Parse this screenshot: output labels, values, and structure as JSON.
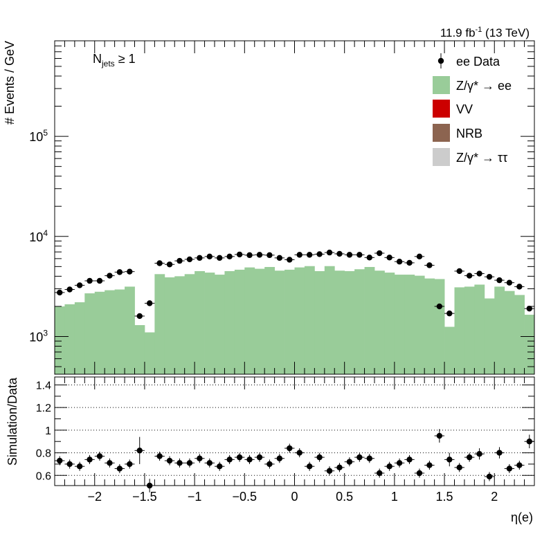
{
  "chart_data": [
    {
      "type": "bar",
      "panel": "main",
      "ylabel": "# Events / GeV",
      "yscale": "log",
      "ylim": [
        420,
        900000
      ],
      "yticks": [
        {
          "v": 1000,
          "label": "10"
        },
        {
          "v": 10000,
          "label": "10"
        },
        {
          "v": 100000,
          "label": "10"
        }
      ],
      "ytick_exponents": [
        "3",
        "4",
        "5"
      ],
      "lumi_label": "11.9 fb",
      "lumi_sup": "-1",
      "lumi_tail": " (13 TeV)",
      "annotation": "N",
      "annotation_sub": "jets",
      "annotation_tail": " ≥ 1",
      "bins": {
        "xmin": -2.4,
        "xmax": 2.4,
        "n": 48
      },
      "series": [
        {
          "name": "ee Data",
          "kind": "points",
          "color": "#000000",
          "values": [
            2750,
            2950,
            3250,
            3600,
            3600,
            4050,
            4400,
            4450,
            1600,
            2150,
            5400,
            5250,
            5700,
            5900,
            6100,
            6300,
            6100,
            6300,
            6600,
            6500,
            6550,
            6500,
            6100,
            5850,
            6550,
            6550,
            6650,
            6900,
            6700,
            6550,
            6550,
            6150,
            6800,
            6150,
            5600,
            5450,
            6300,
            5150,
            2000,
            1700,
            4500,
            4050,
            4250,
            3950,
            3650,
            3450,
            3150,
            1900
          ]
        },
        {
          "name": "Z/γ* → ee",
          "kind": "bars",
          "color": "#99cc99",
          "values": [
            2000,
            2100,
            2200,
            2700,
            2800,
            2900,
            2950,
            3150,
            1300,
            1100,
            4200,
            3900,
            4000,
            4200,
            4500,
            4350,
            4150,
            4500,
            4650,
            4900,
            4750,
            4950,
            4550,
            4650,
            4900,
            5050,
            4500,
            5050,
            4550,
            4500,
            4700,
            4950,
            4550,
            4350,
            4150,
            4150,
            4050,
            3800,
            3750,
            1250,
            3100,
            3150,
            3300,
            2400,
            3150,
            2850,
            2600,
            1650
          ]
        },
        {
          "name": "VV",
          "kind": "legend",
          "color": "#cc0000"
        },
        {
          "name": "NRB",
          "kind": "legend",
          "color": "#8c6450"
        },
        {
          "name": "Z/γ* → ττ",
          "kind": "legend",
          "color": "#cccccc"
        }
      ]
    },
    {
      "type": "scatter",
      "panel": "ratio",
      "xlabel": "η(e)",
      "ylabel": "Simulation/Data",
      "xlim": [
        -2.4,
        2.4
      ],
      "ylim": [
        0.51,
        1.47
      ],
      "xticks": [
        -2,
        -1.5,
        -1,
        -0.5,
        0,
        0.5,
        1,
        1.5,
        2
      ],
      "xtick_labels": [
        "−2",
        "−1.5",
        "−1",
        "−0.5",
        "0",
        "0.5",
        "1",
        "1.5",
        "2"
      ],
      "yticks": [
        0.6,
        0.8,
        1,
        1.2,
        1.4
      ],
      "ytick_labels": [
        "0.6",
        "0.8",
        "1",
        "1.2",
        "1.4"
      ],
      "grid": "dotted horizontal",
      "values": [
        0.73,
        0.7,
        0.68,
        0.74,
        0.77,
        0.71,
        0.66,
        0.7,
        0.82,
        0.51,
        0.77,
        0.73,
        0.71,
        0.71,
        0.75,
        0.71,
        0.68,
        0.74,
        0.76,
        0.74,
        0.76,
        0.7,
        0.75,
        0.84,
        0.8,
        0.68,
        0.76,
        0.64,
        0.67,
        0.72,
        0.76,
        0.75,
        0.62,
        0.68,
        0.71,
        0.74,
        0.62,
        0.69,
        0.95,
        0.74,
        0.67,
        0.76,
        0.79,
        0.59,
        0.8,
        0.66,
        0.69,
        0.9
      ],
      "errors": [
        0.04,
        0.04,
        0.04,
        0.04,
        0.04,
        0.04,
        0.04,
        0.04,
        0.12,
        0.06,
        0.04,
        0.04,
        0.04,
        0.04,
        0.04,
        0.04,
        0.04,
        0.04,
        0.04,
        0.04,
        0.04,
        0.04,
        0.04,
        0.04,
        0.04,
        0.04,
        0.04,
        0.04,
        0.04,
        0.04,
        0.04,
        0.04,
        0.04,
        0.04,
        0.04,
        0.04,
        0.04,
        0.04,
        0.06,
        0.06,
        0.04,
        0.04,
        0.05,
        0.04,
        0.05,
        0.04,
        0.04,
        0.06
      ]
    }
  ]
}
